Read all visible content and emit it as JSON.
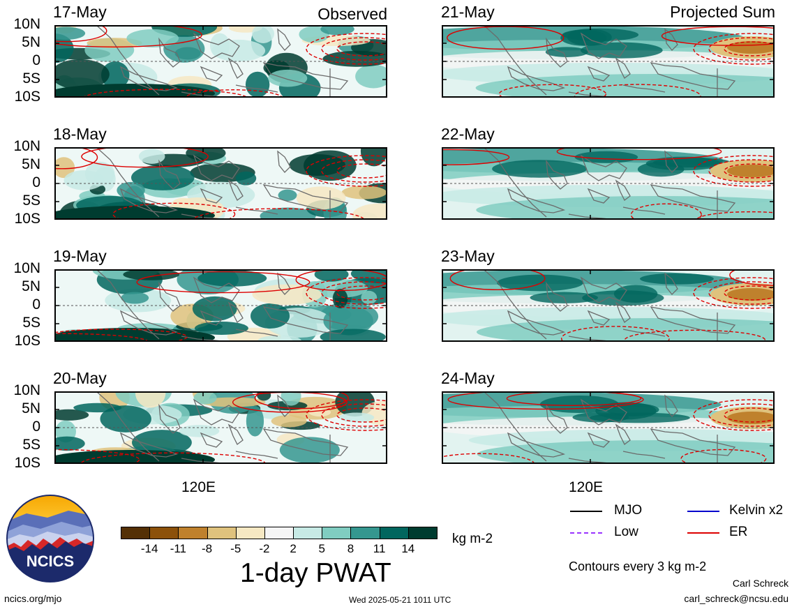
{
  "panels": {
    "observed": {
      "header": "Observed",
      "dates": [
        "17-May",
        "18-May",
        "19-May",
        "20-May"
      ]
    },
    "projected": {
      "header": "Projected Sum",
      "dates": [
        "21-May",
        "22-May",
        "23-May",
        "24-May"
      ]
    }
  },
  "lat_labels": [
    "10N",
    "5N",
    "0",
    "5S",
    "10S"
  ],
  "lon_label": "120E",
  "colorbar": {
    "title": "1-day PWAT",
    "units": "kg m-2",
    "ticks": [
      "-14",
      "-11",
      "-8",
      "-5",
      "-2",
      "2",
      "5",
      "8",
      "11",
      "14"
    ],
    "colors": [
      "#543005",
      "#8c510a",
      "#bf812d",
      "#dfc27d",
      "#f6e8c3",
      "#f5f5f5",
      "#c7eae5",
      "#80cdc1",
      "#35978f",
      "#01665e",
      "#003c30"
    ]
  },
  "legend": {
    "items": [
      {
        "label": "MJO",
        "color": "#000000",
        "style": "solid"
      },
      {
        "label": "Kelvin x2",
        "color": "#0000cc",
        "style": "solid"
      },
      {
        "label": "Low",
        "color": "#9933ff",
        "style": "dashed"
      },
      {
        "label": "ER",
        "color": "#dd0000",
        "style": "solid"
      }
    ],
    "note": "Contours every 3 kg m-2"
  },
  "logo": {
    "text": "NCICS"
  },
  "footer": {
    "url": "ncics.org/mjo",
    "timestamp": "Wed 2025-05-21 1011 UTC",
    "author": "Carl Schreck",
    "email": "carl_schreck@ncsu.edu"
  }
}
